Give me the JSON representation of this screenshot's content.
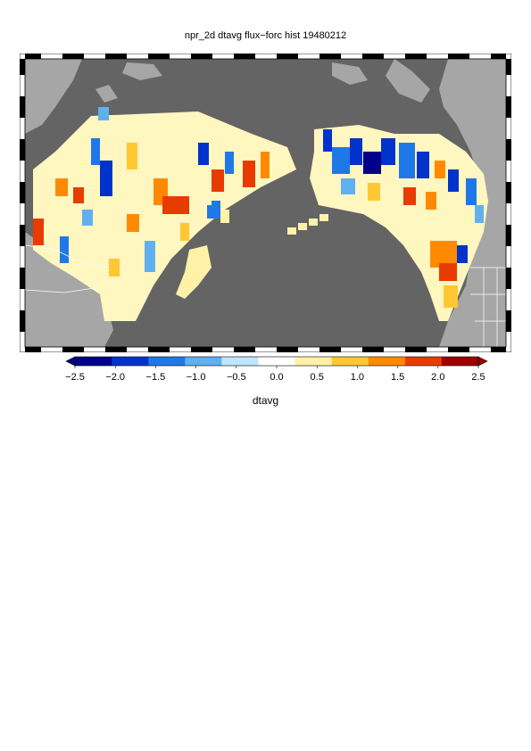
{
  "title": "npr_2d dtavg flux−forc hist 19480212",
  "colorbar": {
    "label": "dtavg",
    "ticks": [
      "−2.5",
      "−2.0",
      "−1.5",
      "−1.0",
      "−0.5",
      "0.0",
      "0.5",
      "1.0",
      "1.5",
      "2.0",
      "2.5"
    ],
    "min": -2.5,
    "max": 2.5,
    "colors": [
      "#00008b",
      "#0033cc",
      "#1f78e8",
      "#5fb0f0",
      "#bfe6ff",
      "#ffffff",
      "#fff2a8",
      "#ffc832",
      "#ff8a00",
      "#e83b00",
      "#a00000"
    ]
  },
  "map": {
    "ocean_color": "#646464",
    "land_color": "#a6a6a6"
  }
}
